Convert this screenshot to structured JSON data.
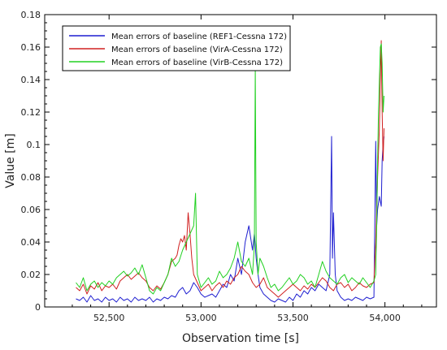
{
  "chart_data": {
    "type": "line",
    "title": "",
    "xlabel": "Observation time [s]",
    "ylabel": "Value [m]",
    "xlim": [
      52150,
      54280
    ],
    "ylim": [
      0,
      0.18
    ],
    "x_ticks": [
      52500,
      53000,
      53500,
      54000
    ],
    "x_tick_labels": [
      "52,500",
      "53,000",
      "53,500",
      "54,000"
    ],
    "y_ticks": [
      0,
      0.02,
      0.04,
      0.06,
      0.08,
      0.1,
      0.12,
      0.14,
      0.16,
      0.18
    ],
    "y_tick_labels": [
      "0",
      "0.02",
      "0.04",
      "0.06",
      "0.08",
      "0.1",
      "0.12",
      "0.14",
      "0.16",
      "0.18"
    ],
    "grid": false,
    "legend_position": "top-left",
    "series": [
      {
        "name": "Mean errors of baseline (REF1-Cessna 172)",
        "color": "#1f1fd0",
        "x": [
          52320,
          52340,
          52360,
          52380,
          52400,
          52420,
          52440,
          52460,
          52480,
          52500,
          52520,
          52540,
          52560,
          52580,
          52600,
          52620,
          52640,
          52660,
          52680,
          52700,
          52720,
          52740,
          52760,
          52780,
          52800,
          52820,
          52840,
          52860,
          52880,
          52900,
          52920,
          52940,
          52960,
          52980,
          53000,
          53020,
          53040,
          53060,
          53080,
          53100,
          53120,
          53140,
          53160,
          53180,
          53200,
          53220,
          53240,
          53260,
          53280,
          53290,
          53300,
          53310,
          53320,
          53340,
          53360,
          53380,
          53400,
          53420,
          53440,
          53460,
          53480,
          53500,
          53520,
          53540,
          53560,
          53580,
          53600,
          53620,
          53640,
          53660,
          53680,
          53700,
          53710,
          53715,
          53720,
          53730,
          53740,
          53760,
          53780,
          53800,
          53820,
          53840,
          53860,
          53880,
          53900,
          53920,
          53940,
          53950,
          53955,
          53960,
          53970,
          53980,
          53985,
          53990,
          53995
        ],
        "y": [
          0.005,
          0.004,
          0.006,
          0.003,
          0.007,
          0.004,
          0.005,
          0.003,
          0.006,
          0.004,
          0.005,
          0.003,
          0.006,
          0.004,
          0.005,
          0.003,
          0.006,
          0.004,
          0.005,
          0.004,
          0.006,
          0.003,
          0.005,
          0.004,
          0.006,
          0.005,
          0.007,
          0.006,
          0.01,
          0.012,
          0.008,
          0.01,
          0.015,
          0.012,
          0.008,
          0.006,
          0.007,
          0.008,
          0.006,
          0.01,
          0.014,
          0.012,
          0.02,
          0.016,
          0.03,
          0.02,
          0.04,
          0.05,
          0.035,
          0.045,
          0.03,
          0.02,
          0.012,
          0.008,
          0.006,
          0.004,
          0.003,
          0.005,
          0.004,
          0.003,
          0.006,
          0.004,
          0.008,
          0.006,
          0.01,
          0.008,
          0.012,
          0.01,
          0.014,
          0.012,
          0.01,
          0.02,
          0.105,
          0.03,
          0.058,
          0.02,
          0.01,
          0.006,
          0.004,
          0.005,
          0.004,
          0.006,
          0.005,
          0.004,
          0.006,
          0.005,
          0.006,
          0.102,
          0.05,
          0.06,
          0.068,
          0.062,
          0.09,
          0.1,
          0.105
        ]
      },
      {
        "name": "Mean errors of baseline (VirA-Cessna 172)",
        "color": "#d02020",
        "x": [
          52320,
          52340,
          52360,
          52380,
          52400,
          52420,
          52440,
          52460,
          52480,
          52500,
          52520,
          52540,
          52560,
          52580,
          52600,
          52620,
          52640,
          52660,
          52680,
          52700,
          52720,
          52740,
          52760,
          52780,
          52800,
          52820,
          52840,
          52860,
          52870,
          52880,
          52890,
          52900,
          52910,
          52920,
          52930,
          52940,
          52950,
          52960,
          52980,
          53000,
          53020,
          53040,
          53060,
          53080,
          53100,
          53120,
          53140,
          53160,
          53180,
          53200,
          53220,
          53240,
          53260,
          53280,
          53300,
          53320,
          53340,
          53360,
          53380,
          53400,
          53420,
          53440,
          53460,
          53480,
          53500,
          53520,
          53540,
          53560,
          53580,
          53600,
          53620,
          53640,
          53660,
          53680,
          53700,
          53720,
          53740,
          53760,
          53780,
          53800,
          53820,
          53840,
          53860,
          53880,
          53900,
          53920,
          53940,
          53950,
          53960,
          53970,
          53975,
          53980,
          53985,
          53990,
          53995
        ],
        "y": [
          0.012,
          0.01,
          0.014,
          0.008,
          0.013,
          0.011,
          0.015,
          0.01,
          0.013,
          0.012,
          0.014,
          0.011,
          0.016,
          0.018,
          0.02,
          0.017,
          0.019,
          0.021,
          0.018,
          0.016,
          0.012,
          0.01,
          0.013,
          0.011,
          0.015,
          0.02,
          0.028,
          0.03,
          0.032,
          0.038,
          0.042,
          0.04,
          0.044,
          0.035,
          0.058,
          0.045,
          0.03,
          0.02,
          0.015,
          0.01,
          0.012,
          0.014,
          0.01,
          0.013,
          0.015,
          0.012,
          0.016,
          0.014,
          0.018,
          0.02,
          0.025,
          0.022,
          0.02,
          0.015,
          0.012,
          0.014,
          0.018,
          0.012,
          0.01,
          0.008,
          0.006,
          0.008,
          0.01,
          0.012,
          0.014,
          0.012,
          0.01,
          0.013,
          0.011,
          0.014,
          0.012,
          0.015,
          0.018,
          0.016,
          0.012,
          0.01,
          0.014,
          0.015,
          0.012,
          0.014,
          0.01,
          0.012,
          0.015,
          0.013,
          0.012,
          0.014,
          0.015,
          0.04,
          0.08,
          0.11,
          0.14,
          0.164,
          0.12,
          0.09,
          0.11
        ]
      },
      {
        "name": "Mean errors of baseline (VirB-Cessna 172)",
        "color": "#20d020",
        "x": [
          52320,
          52340,
          52360,
          52380,
          52400,
          52420,
          52440,
          52460,
          52480,
          52500,
          52520,
          52540,
          52560,
          52580,
          52600,
          52620,
          52640,
          52660,
          52680,
          52700,
          52720,
          52740,
          52760,
          52780,
          52800,
          52820,
          52840,
          52860,
          52880,
          52900,
          52920,
          52940,
          52960,
          52970,
          52980,
          53000,
          53020,
          53040,
          53060,
          53080,
          53100,
          53120,
          53140,
          53160,
          53180,
          53200,
          53220,
          53240,
          53260,
          53280,
          53290,
          53295,
          53300,
          53310,
          53320,
          53340,
          53360,
          53380,
          53400,
          53420,
          53440,
          53460,
          53480,
          53500,
          53520,
          53540,
          53560,
          53580,
          53600,
          53620,
          53640,
          53660,
          53680,
          53700,
          53720,
          53740,
          53760,
          53780,
          53800,
          53820,
          53840,
          53860,
          53880,
          53900,
          53920,
          53940,
          53950,
          53955,
          53960,
          53965,
          53970,
          53975,
          53980,
          53985,
          53990,
          53995
        ],
        "y": [
          0.015,
          0.012,
          0.018,
          0.01,
          0.014,
          0.016,
          0.012,
          0.015,
          0.013,
          0.016,
          0.014,
          0.018,
          0.02,
          0.022,
          0.019,
          0.021,
          0.024,
          0.02,
          0.026,
          0.018,
          0.01,
          0.008,
          0.012,
          0.01,
          0.015,
          0.02,
          0.03,
          0.025,
          0.028,
          0.035,
          0.04,
          0.045,
          0.05,
          0.07,
          0.02,
          0.012,
          0.015,
          0.018,
          0.014,
          0.016,
          0.022,
          0.018,
          0.02,
          0.024,
          0.03,
          0.04,
          0.028,
          0.025,
          0.03,
          0.02,
          0.038,
          0.148,
          0.04,
          0.02,
          0.03,
          0.025,
          0.018,
          0.012,
          0.014,
          0.01,
          0.012,
          0.015,
          0.018,
          0.014,
          0.016,
          0.02,
          0.018,
          0.014,
          0.016,
          0.012,
          0.02,
          0.028,
          0.022,
          0.018,
          0.016,
          0.014,
          0.018,
          0.02,
          0.015,
          0.018,
          0.016,
          0.014,
          0.018,
          0.015,
          0.012,
          0.016,
          0.02,
          0.05,
          0.09,
          0.12,
          0.14,
          0.16,
          0.162,
          0.15,
          0.12,
          0.13
        ]
      }
    ]
  }
}
